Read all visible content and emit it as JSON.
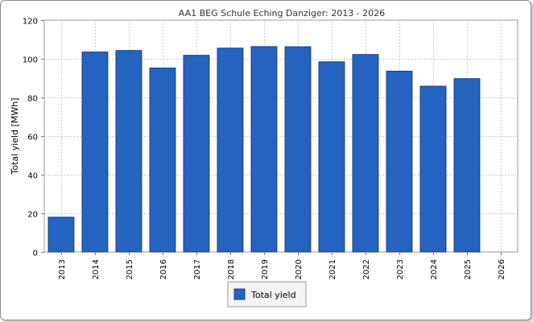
{
  "chart_data": {
    "type": "bar",
    "title": "AA1 BEG Schule Eching Danziger: 2013 - 2026",
    "xlabel": "",
    "ylabel": "Total yield [MWh]",
    "categories": [
      "2013",
      "2014",
      "2015",
      "2016",
      "2017",
      "2018",
      "2019",
      "2020",
      "2021",
      "2022",
      "2023",
      "2024",
      "2025",
      "2026"
    ],
    "series": [
      {
        "name": "Total yield",
        "color": "#2563c0",
        "values": [
          18,
          103.5,
          104.3,
          95.2,
          101.8,
          105.5,
          106.3,
          106.2,
          98.4,
          102.2,
          93.6,
          85.8,
          89.7,
          null
        ]
      }
    ],
    "ylim": [
      0,
      120
    ],
    "yticks": [
      0,
      20,
      40,
      60,
      80,
      100,
      120
    ],
    "grid": true,
    "legend_position": "bottom"
  }
}
